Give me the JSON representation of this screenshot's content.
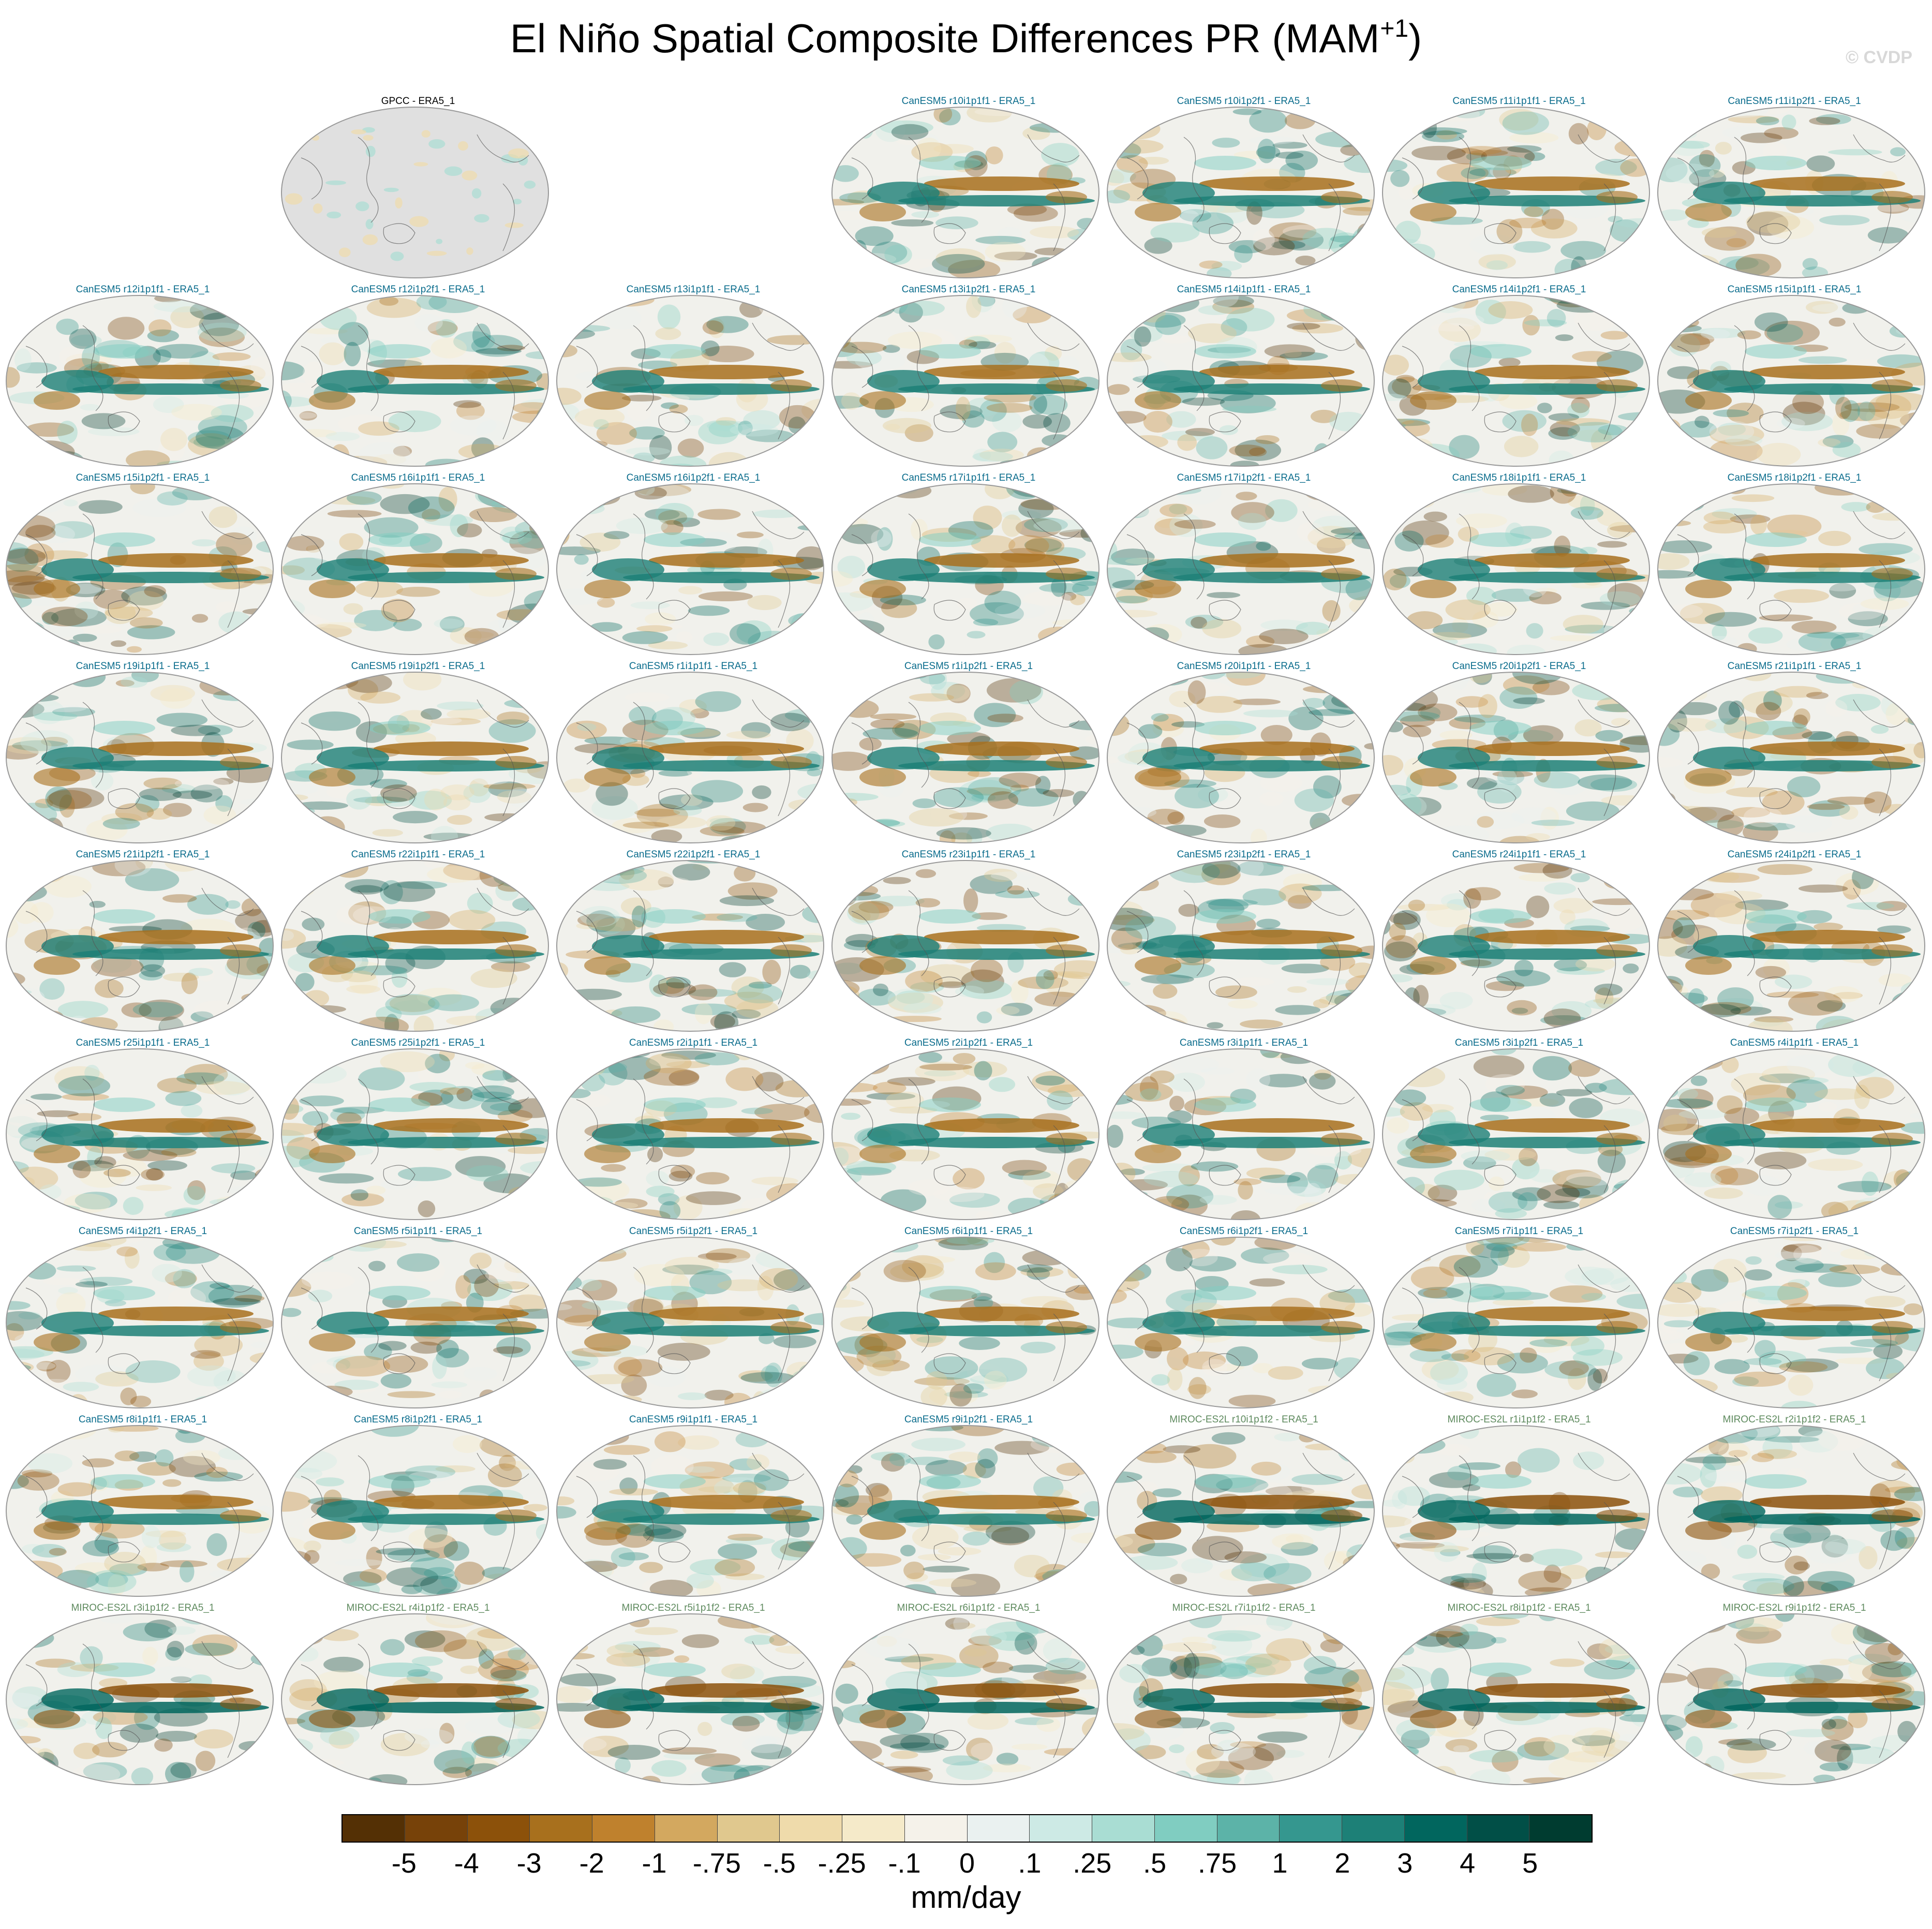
{
  "title": {
    "main": "El Niño Spatial Composite Differences PR (MAM",
    "superscript": "+1",
    "close": ")"
  },
  "watermark": "© CVDP",
  "colors": {
    "obs_label": "#000000",
    "canesm_label": "#0a6c8c",
    "miroc_label": "#5e8a5e",
    "land_obs": "#e0e0e0"
  },
  "panels": [
    {
      "label": "GPCC - ERA5_1",
      "group": "obs",
      "row": 0,
      "col": 1
    },
    {
      "label": "CanESM5 r10i1p1f1 - ERA5_1",
      "group": "canesm",
      "row": 0,
      "col": 3
    },
    {
      "label": "CanESM5 r10i1p2f1 - ERA5_1",
      "group": "canesm",
      "row": 0,
      "col": 4
    },
    {
      "label": "CanESM5 r11i1p1f1 - ERA5_1",
      "group": "canesm",
      "row": 0,
      "col": 5
    },
    {
      "label": "CanESM5 r11i1p2f1 - ERA5_1",
      "group": "canesm",
      "row": 0,
      "col": 6
    },
    {
      "label": "CanESM5 r12i1p1f1 - ERA5_1",
      "group": "canesm",
      "row": 1,
      "col": 0
    },
    {
      "label": "CanESM5 r12i1p2f1 - ERA5_1",
      "group": "canesm",
      "row": 1,
      "col": 1
    },
    {
      "label": "CanESM5 r13i1p1f1 - ERA5_1",
      "group": "canesm",
      "row": 1,
      "col": 2
    },
    {
      "label": "CanESM5 r13i1p2f1 - ERA5_1",
      "group": "canesm",
      "row": 1,
      "col": 3
    },
    {
      "label": "CanESM5 r14i1p1f1 - ERA5_1",
      "group": "canesm",
      "row": 1,
      "col": 4
    },
    {
      "label": "CanESM5 r14i1p2f1 - ERA5_1",
      "group": "canesm",
      "row": 1,
      "col": 5
    },
    {
      "label": "CanESM5 r15i1p1f1 - ERA5_1",
      "group": "canesm",
      "row": 1,
      "col": 6
    },
    {
      "label": "CanESM5 r15i1p2f1 - ERA5_1",
      "group": "canesm",
      "row": 2,
      "col": 0
    },
    {
      "label": "CanESM5 r16i1p1f1 - ERA5_1",
      "group": "canesm",
      "row": 2,
      "col": 1
    },
    {
      "label": "CanESM5 r16i1p2f1 - ERA5_1",
      "group": "canesm",
      "row": 2,
      "col": 2
    },
    {
      "label": "CanESM5 r17i1p1f1 - ERA5_1",
      "group": "canesm",
      "row": 2,
      "col": 3
    },
    {
      "label": "CanESM5 r17i1p2f1 - ERA5_1",
      "group": "canesm",
      "row": 2,
      "col": 4
    },
    {
      "label": "CanESM5 r18i1p1f1 - ERA5_1",
      "group": "canesm",
      "row": 2,
      "col": 5
    },
    {
      "label": "CanESM5 r18i1p2f1 - ERA5_1",
      "group": "canesm",
      "row": 2,
      "col": 6
    },
    {
      "label": "CanESM5 r19i1p1f1 - ERA5_1",
      "group": "canesm",
      "row": 3,
      "col": 0
    },
    {
      "label": "CanESM5 r19i1p2f1 - ERA5_1",
      "group": "canesm",
      "row": 3,
      "col": 1
    },
    {
      "label": "CanESM5 r1i1p1f1 - ERA5_1",
      "group": "canesm",
      "row": 3,
      "col": 2
    },
    {
      "label": "CanESM5 r1i1p2f1 - ERA5_1",
      "group": "canesm",
      "row": 3,
      "col": 3
    },
    {
      "label": "CanESM5 r20i1p1f1 - ERA5_1",
      "group": "canesm",
      "row": 3,
      "col": 4
    },
    {
      "label": "CanESM5 r20i1p2f1 - ERA5_1",
      "group": "canesm",
      "row": 3,
      "col": 5
    },
    {
      "label": "CanESM5 r21i1p1f1 - ERA5_1",
      "group": "canesm",
      "row": 3,
      "col": 6
    },
    {
      "label": "CanESM5 r21i1p2f1 - ERA5_1",
      "group": "canesm",
      "row": 4,
      "col": 0
    },
    {
      "label": "CanESM5 r22i1p1f1 - ERA5_1",
      "group": "canesm",
      "row": 4,
      "col": 1
    },
    {
      "label": "CanESM5 r22i1p2f1 - ERA5_1",
      "group": "canesm",
      "row": 4,
      "col": 2
    },
    {
      "label": "CanESM5 r23i1p1f1 - ERA5_1",
      "group": "canesm",
      "row": 4,
      "col": 3
    },
    {
      "label": "CanESM5 r23i1p2f1 - ERA5_1",
      "group": "canesm",
      "row": 4,
      "col": 4
    },
    {
      "label": "CanESM5 r24i1p1f1 - ERA5_1",
      "group": "canesm",
      "row": 4,
      "col": 5
    },
    {
      "label": "CanESM5 r24i1p2f1 - ERA5_1",
      "group": "canesm",
      "row": 4,
      "col": 6
    },
    {
      "label": "CanESM5 r25i1p1f1 - ERA5_1",
      "group": "canesm",
      "row": 5,
      "col": 0
    },
    {
      "label": "CanESM5 r25i1p2f1 - ERA5_1",
      "group": "canesm",
      "row": 5,
      "col": 1
    },
    {
      "label": "CanESM5 r2i1p1f1 - ERA5_1",
      "group": "canesm",
      "row": 5,
      "col": 2
    },
    {
      "label": "CanESM5 r2i1p2f1 - ERA5_1",
      "group": "canesm",
      "row": 5,
      "col": 3
    },
    {
      "label": "CanESM5 r3i1p1f1 - ERA5_1",
      "group": "canesm",
      "row": 5,
      "col": 4
    },
    {
      "label": "CanESM5 r3i1p2f1 - ERA5_1",
      "group": "canesm",
      "row": 5,
      "col": 5
    },
    {
      "label": "CanESM5 r4i1p1f1 - ERA5_1",
      "group": "canesm",
      "row": 5,
      "col": 6
    },
    {
      "label": "CanESM5 r4i1p2f1 - ERA5_1",
      "group": "canesm",
      "row": 6,
      "col": 0
    },
    {
      "label": "CanESM5 r5i1p1f1 - ERA5_1",
      "group": "canesm",
      "row": 6,
      "col": 1
    },
    {
      "label": "CanESM5 r5i1p2f1 - ERA5_1",
      "group": "canesm",
      "row": 6,
      "col": 2
    },
    {
      "label": "CanESM5 r6i1p1f1 - ERA5_1",
      "group": "canesm",
      "row": 6,
      "col": 3
    },
    {
      "label": "CanESM5 r6i1p2f1 - ERA5_1",
      "group": "canesm",
      "row": 6,
      "col": 4
    },
    {
      "label": "CanESM5 r7i1p1f1 - ERA5_1",
      "group": "canesm",
      "row": 6,
      "col": 5
    },
    {
      "label": "CanESM5 r7i1p2f1 - ERA5_1",
      "group": "canesm",
      "row": 6,
      "col": 6
    },
    {
      "label": "CanESM5 r8i1p1f1 - ERA5_1",
      "group": "canesm",
      "row": 7,
      "col": 0
    },
    {
      "label": "CanESM5 r8i1p2f1 - ERA5_1",
      "group": "canesm",
      "row": 7,
      "col": 1
    },
    {
      "label": "CanESM5 r9i1p1f1 - ERA5_1",
      "group": "canesm",
      "row": 7,
      "col": 2
    },
    {
      "label": "CanESM5 r9i1p2f1 - ERA5_1",
      "group": "canesm",
      "row": 7,
      "col": 3
    },
    {
      "label": "MIROC-ES2L r10i1p1f2 - ERA5_1",
      "group": "miroc",
      "row": 7,
      "col": 4
    },
    {
      "label": "MIROC-ES2L r1i1p1f2 - ERA5_1",
      "group": "miroc",
      "row": 7,
      "col": 5
    },
    {
      "label": "MIROC-ES2L r2i1p1f2 - ERA5_1",
      "group": "miroc",
      "row": 7,
      "col": 6
    },
    {
      "label": "MIROC-ES2L r3i1p1f2 - ERA5_1",
      "group": "miroc",
      "row": 8,
      "col": 0
    },
    {
      "label": "MIROC-ES2L r4i1p1f2 - ERA5_1",
      "group": "miroc",
      "row": 8,
      "col": 1
    },
    {
      "label": "MIROC-ES2L r5i1p1f2 - ERA5_1",
      "group": "miroc",
      "row": 8,
      "col": 2
    },
    {
      "label": "MIROC-ES2L r6i1p1f2 - ERA5_1",
      "group": "miroc",
      "row": 8,
      "col": 3
    },
    {
      "label": "MIROC-ES2L r7i1p1f2 - ERA5_1",
      "group": "miroc",
      "row": 8,
      "col": 4
    },
    {
      "label": "MIROC-ES2L r8i1p1f2 - ERA5_1",
      "group": "miroc",
      "row": 8,
      "col": 5
    },
    {
      "label": "MIROC-ES2L r9i1p1f2 - ERA5_1",
      "group": "miroc",
      "row": 8,
      "col": 6
    }
  ],
  "colorbar": {
    "units": "mm/day",
    "colors": [
      "#543005",
      "#774209",
      "#8c510a",
      "#a8701d",
      "#bf812d",
      "#d3a85f",
      "#e0c88e",
      "#efdbab",
      "#f5eac9",
      "#f5f2ea",
      "#eaf1f0",
      "#cdeae5",
      "#a9ddd3",
      "#80cdc1",
      "#5cb3a8",
      "#35978f",
      "#1d8077",
      "#01665e",
      "#014f47",
      "#003c30"
    ],
    "labels": [
      "-5",
      "-4",
      "-3",
      "-2",
      "-1",
      "-.75",
      "-.5",
      "-.25",
      "-.1",
      "0",
      ".1",
      ".25",
      ".5",
      ".75",
      "1",
      "2",
      "3",
      "4",
      "5"
    ]
  }
}
